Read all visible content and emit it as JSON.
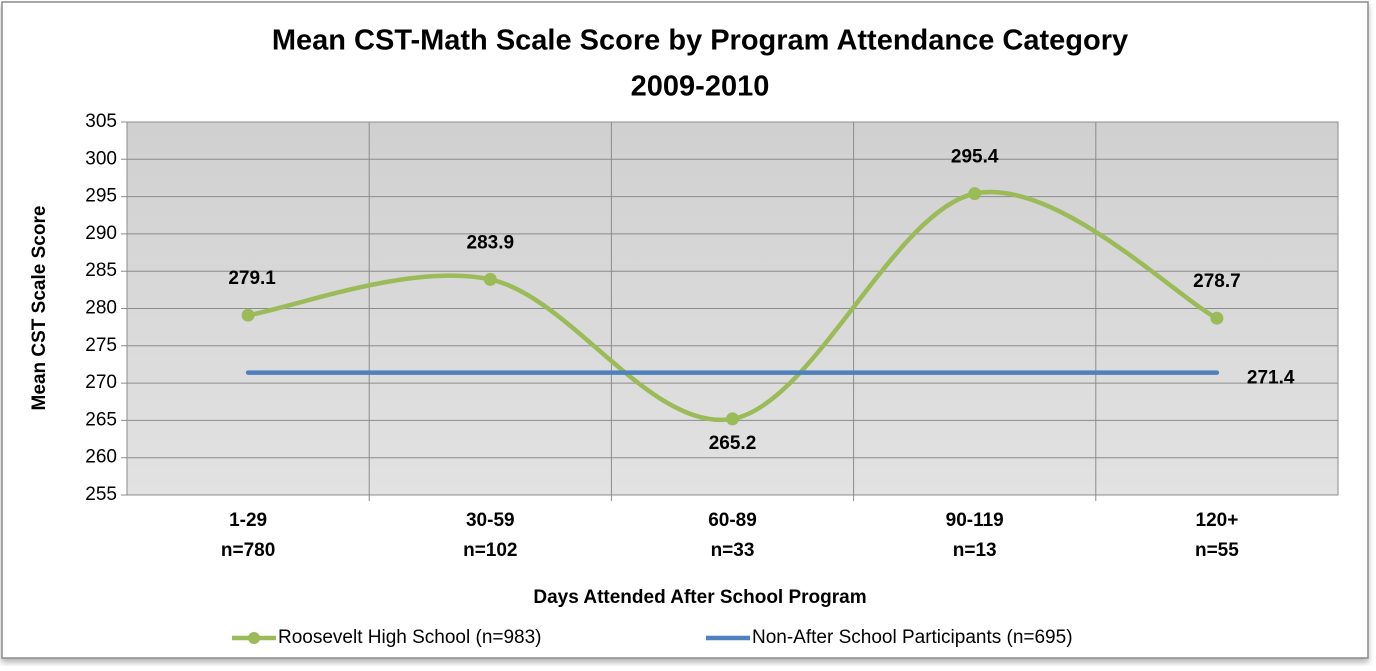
{
  "chart_data": {
    "type": "line",
    "title": [
      "Mean CST-Math Scale Score by Program Attendance Category",
      "2009-2010"
    ],
    "x_label": "Days Attended After School Program",
    "y_label": "Mean CST Scale Score",
    "categories": [
      [
        "1-29",
        "n=780"
      ],
      [
        "30-59",
        "n=102"
      ],
      [
        "60-89",
        "n=33"
      ],
      [
        "90-119",
        "n=13"
      ],
      [
        "120+",
        "n=55"
      ]
    ],
    "series": [
      {
        "name": "Roosevelt High School (n=983)",
        "color": "#9bbb59",
        "smooth": true,
        "markers": true,
        "values": [
          279.1,
          283.9,
          265.2,
          295.4,
          278.7
        ],
        "label_positions": [
          "above",
          "above",
          "below",
          "above",
          "above"
        ]
      },
      {
        "name": "Non-After School Participants (n=695)",
        "color": "#4f81bd",
        "smooth": false,
        "markers": false,
        "values": [
          271.4,
          271.4,
          271.4,
          271.4,
          271.4
        ],
        "label_positions": [
          null,
          null,
          null,
          null,
          "right"
        ]
      }
    ],
    "ylim": [
      255,
      305
    ],
    "yticks": [
      255,
      260,
      265,
      270,
      275,
      280,
      285,
      290,
      295,
      300,
      305
    ],
    "grid": true,
    "legend": "bottom"
  }
}
